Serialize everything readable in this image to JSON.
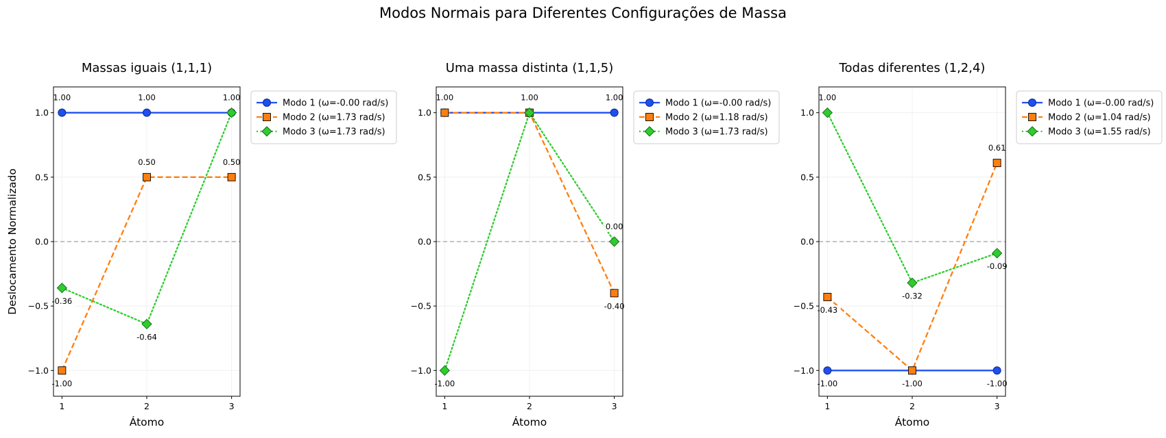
{
  "figure_title": "Modos Normais para Diferentes Configurações de Massa",
  "shared_ylabel": "Deslocamento Normalizado",
  "colors": {
    "mode1": "#1f4ff0",
    "mode2": "#ff7f0e",
    "mode3": "#2ecc2e",
    "zero_line": "#b0b0b0",
    "grid": "#eeeeee"
  },
  "chart_data": [
    {
      "type": "line",
      "title": "Massas iguais (1,1,1)",
      "xlabel": "Átomo",
      "ylabel": "Deslocamento Normalizado",
      "x": [
        1,
        2,
        3
      ],
      "xlim": [
        0.9,
        3.1
      ],
      "ylim": [
        -1.2,
        1.2
      ],
      "yticks": [
        -1.0,
        -0.5,
        0.0,
        0.5,
        1.0
      ],
      "ytick_labels": [
        "−1.0",
        "−0.5",
        "0.0",
        "0.5",
        "1.0"
      ],
      "xtick_labels": [
        "1",
        "2",
        "3"
      ],
      "grid": true,
      "legend_position": "outside-right",
      "series": [
        {
          "name": "Modo 1 (ω=-0.00 rad/s)",
          "values": [
            1.0,
            1.0,
            1.0
          ],
          "labels": [
            "1.00",
            "1.00",
            "1.00"
          ],
          "label_pos": [
            "above",
            "above",
            "above"
          ],
          "marker": "circle",
          "linestyle": "solid",
          "color": "#1f4ff0"
        },
        {
          "name": "Modo 2 (ω=1.73 rad/s)",
          "values": [
            -1.0,
            0.5,
            0.5
          ],
          "labels": [
            "-1.00",
            "0.50",
            "0.50"
          ],
          "label_pos": [
            "below",
            "above",
            "above"
          ],
          "marker": "square",
          "linestyle": "dashed",
          "color": "#ff7f0e"
        },
        {
          "name": "Modo 3 (ω=1.73 rad/s)",
          "values": [
            -0.36,
            -0.64,
            1.0
          ],
          "labels": [
            "-0.36",
            "-0.64",
            ""
          ],
          "label_pos": [
            "below",
            "below",
            "above"
          ],
          "marker": "diamond",
          "linestyle": "dotted",
          "color": "#2ecc2e"
        }
      ]
    },
    {
      "type": "line",
      "title": "Uma massa distinta (1,1,5)",
      "xlabel": "Átomo",
      "ylabel": "",
      "x": [
        1,
        2,
        3
      ],
      "xlim": [
        0.9,
        3.1
      ],
      "ylim": [
        -1.2,
        1.2
      ],
      "yticks": [
        -1.0,
        -0.5,
        0.0,
        0.5,
        1.0
      ],
      "ytick_labels": [
        "−1.0",
        "−0.5",
        "0.0",
        "0.5",
        "1.0"
      ],
      "xtick_labels": [
        "1",
        "2",
        "3"
      ],
      "grid": true,
      "legend_position": "outside-right",
      "series": [
        {
          "name": "Modo 1 (ω=-0.00 rad/s)",
          "values": [
            1.0,
            1.0,
            1.0
          ],
          "labels": [
            "1.00",
            "1.00",
            "1.00"
          ],
          "label_pos": [
            "above",
            "above",
            "above"
          ],
          "marker": "circle",
          "linestyle": "solid",
          "color": "#1f4ff0"
        },
        {
          "name": "Modo 2 (ω=1.18 rad/s)",
          "values": [
            1.0,
            1.0,
            -0.4
          ],
          "labels": [
            "",
            "",
            "-0.40"
          ],
          "label_pos": [
            "above",
            "above",
            "below"
          ],
          "marker": "square",
          "linestyle": "dashed",
          "color": "#ff7f0e"
        },
        {
          "name": "Modo 3 (ω=1.73 rad/s)",
          "values": [
            -1.0,
            1.0,
            0.0
          ],
          "labels": [
            "-1.00",
            "",
            "0.00"
          ],
          "label_pos": [
            "below",
            "above",
            "above"
          ],
          "marker": "diamond",
          "linestyle": "dotted",
          "color": "#2ecc2e"
        }
      ]
    },
    {
      "type": "line",
      "title": "Todas diferentes (1,2,4)",
      "xlabel": "Átomo",
      "ylabel": "",
      "x": [
        1,
        2,
        3
      ],
      "xlim": [
        0.9,
        3.1
      ],
      "ylim": [
        -1.2,
        1.2
      ],
      "yticks": [
        -1.0,
        -0.5,
        0.0,
        0.5,
        1.0
      ],
      "ytick_labels": [
        "−1.0",
        "−0.5",
        "0.0",
        "0.5",
        "1.0"
      ],
      "xtick_labels": [
        "1",
        "2",
        "3"
      ],
      "grid": true,
      "legend_position": "outside-right",
      "series": [
        {
          "name": "Modo 1 (ω=-0.00 rad/s)",
          "values": [
            -1.0,
            -1.0,
            -1.0
          ],
          "labels": [
            "-1.00",
            "-1.00",
            "-1.00"
          ],
          "label_pos": [
            "below",
            "below",
            "below"
          ],
          "marker": "circle",
          "linestyle": "solid",
          "color": "#1f4ff0"
        },
        {
          "name": "Modo 2 (ω=1.04 rad/s)",
          "values": [
            -0.43,
            -1.0,
            0.61
          ],
          "labels": [
            "-0.43",
            "",
            "0.61"
          ],
          "label_pos": [
            "below",
            "below",
            "above"
          ],
          "marker": "square",
          "linestyle": "dashed",
          "color": "#ff7f0e"
        },
        {
          "name": "Modo 3 (ω=1.55 rad/s)",
          "values": [
            1.0,
            -0.32,
            -0.09
          ],
          "labels": [
            "1.00",
            "-0.32",
            "-0.09"
          ],
          "label_pos": [
            "above",
            "below",
            "below"
          ],
          "marker": "diamond",
          "linestyle": "dotted",
          "color": "#2ecc2e"
        }
      ]
    }
  ]
}
